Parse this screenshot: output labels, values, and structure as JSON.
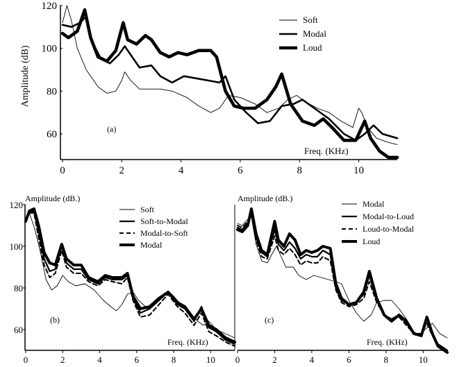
{
  "chart_data": [
    {
      "type": "line",
      "panel_label": "(a)",
      "ylabel": "Amplitude (dB)",
      "xlabel": "Freq. (KHz)",
      "xlim": [
        0,
        11.3
      ],
      "ylim": [
        48,
        120
      ],
      "xticks": [
        "0",
        "2",
        "4",
        "6",
        "8",
        "10"
      ],
      "yticks": [
        "60",
        "80",
        "100",
        "120"
      ],
      "legend_position": "top-right",
      "series": [
        {
          "name": "Soft",
          "x": [
            0,
            0.15,
            0.3,
            0.5,
            0.8,
            1.2,
            1.5,
            1.8,
            2.0,
            2.1,
            2.3,
            2.6,
            2.9,
            3.3,
            3.7,
            4.2,
            4.6,
            5.0,
            5.3,
            5.6,
            6.0,
            6.5,
            6.9,
            7.3,
            7.6,
            7.9,
            8.2,
            8.6,
            9.0,
            9.4,
            9.8,
            10.0,
            10.1,
            10.3,
            10.6,
            11.0,
            11.3
          ],
          "y": [
            112,
            120,
            113,
            100,
            90,
            82,
            79,
            80,
            85,
            89,
            85,
            81,
            81,
            81,
            80,
            77,
            73,
            70,
            72,
            78,
            77,
            74,
            70,
            72,
            76,
            78,
            75,
            72,
            70,
            66,
            63,
            72,
            70,
            63,
            58,
            56,
            55
          ]
        },
        {
          "name": "Modal",
          "x": [
            0,
            0.3,
            0.6,
            0.8,
            1.0,
            1.3,
            1.6,
            1.9,
            2.1,
            2.3,
            2.6,
            3.0,
            3.3,
            3.7,
            4.1,
            4.5,
            4.9,
            5.3,
            5.5,
            5.8,
            6.2,
            6.6,
            7.0,
            7.4,
            7.8,
            8.1,
            8.5,
            9.0,
            9.5,
            9.9,
            10.2,
            10.5,
            10.8,
            11.3
          ],
          "y": [
            111,
            110,
            112,
            115,
            103,
            95,
            93,
            97,
            101,
            97,
            91,
            92,
            87,
            84,
            87,
            86,
            85,
            84,
            87,
            76,
            70,
            65,
            66,
            73,
            74,
            76,
            72,
            67,
            60,
            57,
            60,
            64,
            60,
            58
          ]
        },
        {
          "name": "Loud",
          "x": [
            0,
            0.2,
            0.5,
            0.75,
            0.95,
            1.2,
            1.5,
            1.8,
            2.05,
            2.2,
            2.5,
            2.8,
            3.0,
            3.3,
            3.6,
            3.9,
            4.2,
            4.6,
            5.0,
            5.2,
            5.5,
            5.8,
            6.1,
            6.5,
            6.9,
            7.2,
            7.4,
            7.7,
            8.1,
            8.5,
            8.8,
            9.1,
            9.5,
            9.9,
            10.2,
            10.4,
            10.7,
            11.0,
            11.3
          ],
          "y": [
            107,
            105,
            108,
            118,
            105,
            96,
            94,
            99,
            112,
            104,
            102,
            106,
            104,
            98,
            96,
            98,
            97,
            99,
            99,
            96,
            80,
            73,
            72,
            72,
            76,
            82,
            88,
            74,
            66,
            64,
            67,
            63,
            57,
            57,
            66,
            58,
            52,
            49,
            49
          ]
        }
      ]
    },
    {
      "type": "line",
      "panel_label": "(b)",
      "ylabel": "Amplitude (dB.)",
      "xlabel": "Freq. (KHz)",
      "xlim": [
        0,
        11.3
      ],
      "ylim": [
        50,
        120
      ],
      "xticks": [
        "0",
        "2",
        "4",
        "6",
        "8",
        "10"
      ],
      "yticks": [
        "60",
        "80",
        "100",
        "120"
      ],
      "legend_position": "top-right",
      "series": [
        {
          "name": "Soft",
          "x": [
            0,
            0.2,
            0.5,
            0.8,
            1.1,
            1.4,
            1.7,
            2.0,
            2.3,
            2.7,
            3.2,
            3.7,
            4.2,
            4.6,
            4.9,
            5.2,
            5.5,
            5.8,
            6.1,
            6.6,
            7.0,
            7.5,
            7.9,
            8.4,
            8.9,
            9.3,
            9.6,
            9.9,
            10.3,
            10.8,
            11.3
          ],
          "y": [
            113,
            116,
            108,
            97,
            84,
            79,
            81,
            86,
            83,
            81,
            82,
            79,
            74,
            71,
            69,
            72,
            77,
            78,
            74,
            70,
            74,
            77,
            77,
            72,
            68,
            64,
            62,
            64,
            60,
            58,
            56
          ]
        },
        {
          "name": "Soft-to-Modal",
          "x": [
            0,
            0.2,
            0.45,
            0.7,
            1.0,
            1.3,
            1.6,
            1.95,
            2.2,
            2.6,
            3.0,
            3.4,
            3.9,
            4.3,
            4.7,
            5.2,
            5.5,
            5.8,
            6.2,
            6.7,
            7.2,
            7.7,
            8.2,
            8.6,
            9.1,
            9.5,
            9.9,
            10.3,
            10.8,
            11.3
          ],
          "y": [
            112,
            116,
            117,
            107,
            94,
            88,
            89,
            100,
            92,
            89,
            89,
            84,
            82,
            85,
            84,
            84,
            86,
            75,
            68,
            70,
            74,
            78,
            72,
            70,
            64,
            71,
            61,
            59,
            55,
            53
          ]
        },
        {
          "name": "Modal-to-Soft",
          "x": [
            0,
            0.2,
            0.45,
            0.7,
            1.0,
            1.3,
            1.6,
            1.95,
            2.2,
            2.6,
            3.0,
            3.4,
            3.9,
            4.3,
            4.7,
            5.2,
            5.5,
            5.8,
            6.2,
            6.7,
            7.2,
            7.7,
            8.2,
            8.6,
            9.1,
            9.5,
            9.9,
            10.3,
            10.8,
            11.3
          ],
          "y": [
            113,
            116,
            116,
            104,
            91,
            85,
            87,
            98,
            90,
            87,
            87,
            83,
            81,
            84,
            83,
            82,
            85,
            74,
            66,
            67,
            72,
            77,
            71,
            68,
            62,
            68,
            59,
            57,
            54,
            52
          ]
        },
        {
          "name": "Modal",
          "x": [
            0,
            0.2,
            0.45,
            0.7,
            1.0,
            1.3,
            1.6,
            1.95,
            2.2,
            2.6,
            3.0,
            3.4,
            3.9,
            4.3,
            4.7,
            5.2,
            5.5,
            5.8,
            6.2,
            6.7,
            7.2,
            7.7,
            8.2,
            8.6,
            9.1,
            9.5,
            9.9,
            10.3,
            10.8,
            11.3
          ],
          "y": [
            112,
            117,
            118,
            110,
            97,
            92,
            91,
            101,
            94,
            91,
            91,
            85,
            83,
            86,
            85,
            85,
            87,
            76,
            70,
            71,
            75,
            78,
            73,
            71,
            65,
            70,
            62,
            60,
            56,
            54
          ]
        }
      ]
    },
    {
      "type": "line",
      "panel_label": "(c)",
      "ylabel": "Amplitude (dB.)",
      "xlabel": "Freq. (KHz)",
      "xlim": [
        0,
        11.3
      ],
      "ylim": [
        50,
        120
      ],
      "xticks": [
        "0",
        "2",
        "4",
        "6",
        "8",
        "10"
      ],
      "legend_position": "top-right",
      "series": [
        {
          "name": "Modal",
          "x": [
            0,
            0.25,
            0.55,
            0.75,
            1.0,
            1.3,
            1.6,
            1.9,
            2.1,
            2.3,
            2.6,
            3.0,
            3.3,
            3.7,
            4.1,
            4.5,
            4.9,
            5.3,
            5.6,
            6.0,
            6.4,
            6.8,
            7.2,
            7.5,
            7.9,
            8.3,
            8.7,
            9.1,
            9.5,
            9.8,
            10.1,
            10.5,
            10.9,
            11.3
          ],
          "y": [
            111,
            110,
            113,
            114,
            101,
            93,
            92,
            97,
            100,
            96,
            90,
            90,
            86,
            84,
            86,
            85,
            84,
            83,
            82,
            74,
            68,
            64,
            67,
            73,
            74,
            74,
            70,
            65,
            59,
            57,
            60,
            63,
            58,
            56
          ]
        },
        {
          "name": "Modal-to-Loud",
          "x": [
            0,
            0.25,
            0.55,
            0.75,
            1.0,
            1.3,
            1.6,
            2.0,
            2.2,
            2.5,
            2.8,
            3.1,
            3.4,
            3.7,
            4.0,
            4.3,
            4.6,
            5.0,
            5.3,
            5.6,
            6.0,
            6.4,
            6.8,
            7.1,
            7.5,
            7.9,
            8.3,
            8.7,
            9.1,
            9.5,
            9.9,
            10.2,
            10.5,
            10.8,
            11.3
          ],
          "y": [
            109,
            108,
            111,
            116,
            104,
            97,
            95,
            108,
            101,
            98,
            102,
            99,
            94,
            96,
            95,
            95,
            98,
            96,
            80,
            74,
            72,
            73,
            77,
            86,
            74,
            67,
            65,
            67,
            63,
            58,
            58,
            65,
            58,
            53,
            50
          ]
        },
        {
          "name": "Loud-to-Modal",
          "x": [
            0,
            0.25,
            0.55,
            0.75,
            1.0,
            1.3,
            1.6,
            2.0,
            2.2,
            2.5,
            2.8,
            3.1,
            3.4,
            3.7,
            4.0,
            4.3,
            4.6,
            5.0,
            5.3,
            5.6,
            6.0,
            6.4,
            6.8,
            7.1,
            7.5,
            7.9,
            8.3,
            8.7,
            9.1,
            9.5,
            9.9,
            10.2,
            10.5,
            10.8,
            11.3
          ],
          "y": [
            110,
            109,
            112,
            115,
            103,
            95,
            94,
            105,
            98,
            96,
            99,
            96,
            91,
            93,
            92,
            92,
            95,
            93,
            79,
            73,
            71,
            72,
            75,
            83,
            73,
            67,
            65,
            66,
            62,
            58,
            58,
            63,
            57,
            53,
            50
          ]
        },
        {
          "name": "Loud",
          "x": [
            0,
            0.25,
            0.55,
            0.75,
            1.0,
            1.3,
            1.6,
            2.0,
            2.2,
            2.5,
            2.8,
            3.1,
            3.4,
            3.7,
            4.0,
            4.3,
            4.6,
            5.0,
            5.3,
            5.6,
            6.0,
            6.4,
            6.8,
            7.1,
            7.5,
            7.9,
            8.3,
            8.7,
            9.1,
            9.5,
            9.9,
            10.2,
            10.5,
            10.8,
            11.3
          ],
          "y": [
            108,
            107,
            110,
            118,
            106,
            98,
            96,
            112,
            103,
            100,
            106,
            103,
            96,
            98,
            97,
            98,
            100,
            99,
            82,
            75,
            72,
            73,
            78,
            88,
            75,
            67,
            64,
            67,
            64,
            58,
            57,
            66,
            58,
            52,
            49
          ]
        }
      ]
    }
  ],
  "legend_a": [
    "Soft",
    "Modal",
    "Loud"
  ],
  "legend_b": [
    "Soft",
    "Soft-to-Modal",
    "Modal-to-Soft",
    "Modal"
  ],
  "legend_c": [
    "Modal",
    "Modal-to-Loud",
    "Loud-to-Modal",
    "Loud"
  ]
}
